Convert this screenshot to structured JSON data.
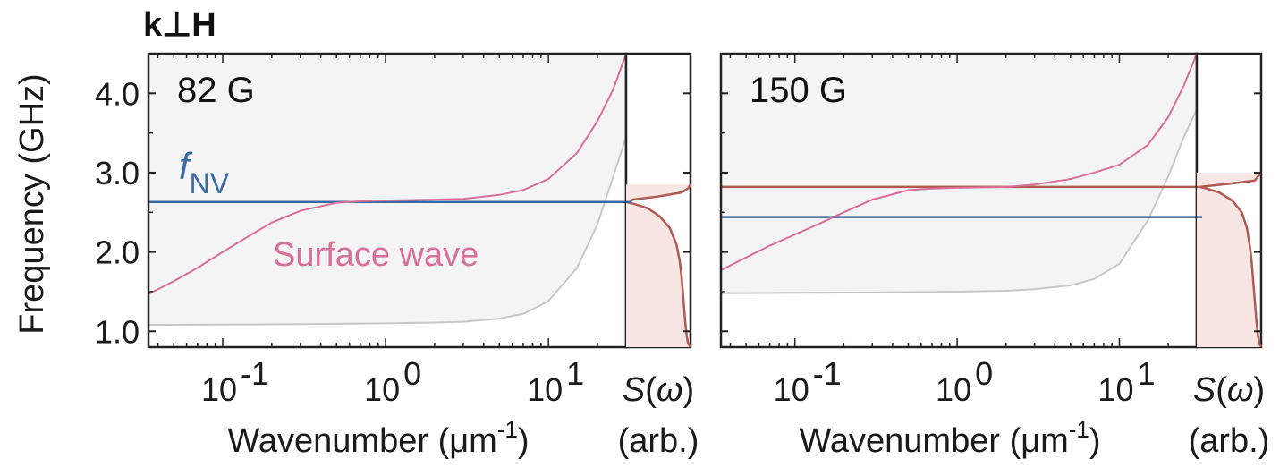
{
  "figure": {
    "title": "k⊥H",
    "ylabel": "Frequency (GHz)",
    "xlabel": "Wavenumber (μm",
    "xlabel_exp": "-1",
    "xlabel_close": ")",
    "slabel_prefix": "S(",
    "slabel_omega": "ω",
    "slabel_suffix": ")",
    "slabel_unit": "(arb.)",
    "fnv_main": "f",
    "fnv_sub": "NV",
    "surface_label": "Surface wave",
    "colors": {
      "surface": "#d9709a",
      "bulk_edge": "#c8c8c8",
      "nv": "#3a6aa2",
      "spectrum": "#b05a52",
      "shade": "#f4f4f4",
      "axis": "#222222"
    }
  },
  "chart_data": [
    {
      "type": "line",
      "field_label": "82 G",
      "xscale": "log",
      "xlim": [
        0.035,
        30
      ],
      "ylim": [
        0.8,
        4.5
      ],
      "yticks": [
        1.0,
        2.0,
        3.0,
        4.0
      ],
      "ytick_labels": [
        "1.0",
        "2.0",
        "3.0",
        "4.0"
      ],
      "xticks": [
        {
          "base": "10",
          "exp": "-1",
          "value": 0.1
        },
        {
          "base": "10",
          "exp": "0",
          "value": 1
        },
        {
          "base": "10",
          "exp": "1",
          "value": 10
        }
      ],
      "f_nv": 2.63,
      "series": [
        {
          "name": "Surface wave",
          "x": [
            0.035,
            0.05,
            0.07,
            0.1,
            0.15,
            0.2,
            0.3,
            0.5,
            0.7,
            1,
            1.5,
            2,
            3,
            5,
            7,
            10,
            15,
            20,
            25,
            30
          ],
          "y": [
            1.47,
            1.63,
            1.8,
            2.0,
            2.22,
            2.37,
            2.52,
            2.62,
            2.64,
            2.65,
            2.655,
            2.66,
            2.67,
            2.72,
            2.78,
            2.92,
            3.25,
            3.65,
            4.05,
            4.5
          ]
        },
        {
          "x": [
            0.035,
            0.1,
            0.3,
            1,
            2,
            3,
            5,
            7,
            10,
            15,
            20,
            25,
            30
          ],
          "y": [
            1.08,
            1.085,
            1.09,
            1.1,
            1.11,
            1.12,
            1.16,
            1.22,
            1.38,
            1.8,
            2.35,
            2.95,
            3.45
          ]
        }
      ],
      "spectrum": {
        "y": [
          0.8,
          0.85,
          0.95,
          1.1,
          1.3,
          1.5,
          1.7,
          1.9,
          2.1,
          2.3,
          2.45,
          2.55,
          2.6,
          2.62,
          2.66,
          2.7,
          2.75,
          2.8,
          2.85
        ],
        "s": [
          1.0,
          0.96,
          0.94,
          0.92,
          0.9,
          0.88,
          0.86,
          0.83,
          0.78,
          0.68,
          0.52,
          0.34,
          0.15,
          0.05,
          0.1,
          0.5,
          0.86,
          0.96,
          1.0
        ]
      }
    },
    {
      "type": "line",
      "field_label": "150 G",
      "xscale": "log",
      "xlim": [
        0.035,
        30
      ],
      "ylim": [
        0.8,
        4.5
      ],
      "yticks": [
        1.0,
        2.0,
        3.0,
        4.0
      ],
      "ytick_labels": [
        "",
        "",
        "",
        ""
      ],
      "xticks": [
        {
          "base": "10",
          "exp": "-1",
          "value": 0.1
        },
        {
          "base": "10",
          "exp": "0",
          "value": 1
        },
        {
          "base": "10",
          "exp": "1",
          "value": 10
        }
      ],
      "f_nv": 2.44,
      "upper_line": 2.82,
      "series": [
        {
          "x": [
            0.035,
            0.05,
            0.07,
            0.1,
            0.15,
            0.2,
            0.3,
            0.5,
            0.7,
            1,
            2,
            3,
            5,
            7,
            10,
            15,
            20,
            25,
            30
          ],
          "y": [
            1.77,
            1.93,
            2.08,
            2.22,
            2.38,
            2.5,
            2.66,
            2.78,
            2.8,
            2.81,
            2.82,
            2.85,
            2.92,
            3.0,
            3.1,
            3.35,
            3.7,
            4.1,
            4.5
          ]
        },
        {
          "x": [
            0.035,
            0.1,
            0.3,
            1,
            2,
            3,
            5,
            7,
            10,
            15,
            20,
            25,
            30
          ],
          "y": [
            1.48,
            1.485,
            1.49,
            1.5,
            1.51,
            1.53,
            1.58,
            1.66,
            1.85,
            2.4,
            2.95,
            3.45,
            3.8
          ]
        }
      ],
      "spectrum": {
        "y": [
          0.8,
          0.85,
          0.95,
          1.1,
          1.3,
          1.5,
          1.7,
          1.9,
          2.1,
          2.3,
          2.5,
          2.65,
          2.75,
          2.8,
          2.82,
          2.86,
          2.9,
          3.0
        ],
        "s": [
          1.0,
          0.97,
          0.95,
          0.93,
          0.91,
          0.89,
          0.87,
          0.85,
          0.82,
          0.78,
          0.7,
          0.55,
          0.35,
          0.15,
          0.05,
          0.5,
          0.9,
          1.0
        ]
      }
    }
  ]
}
